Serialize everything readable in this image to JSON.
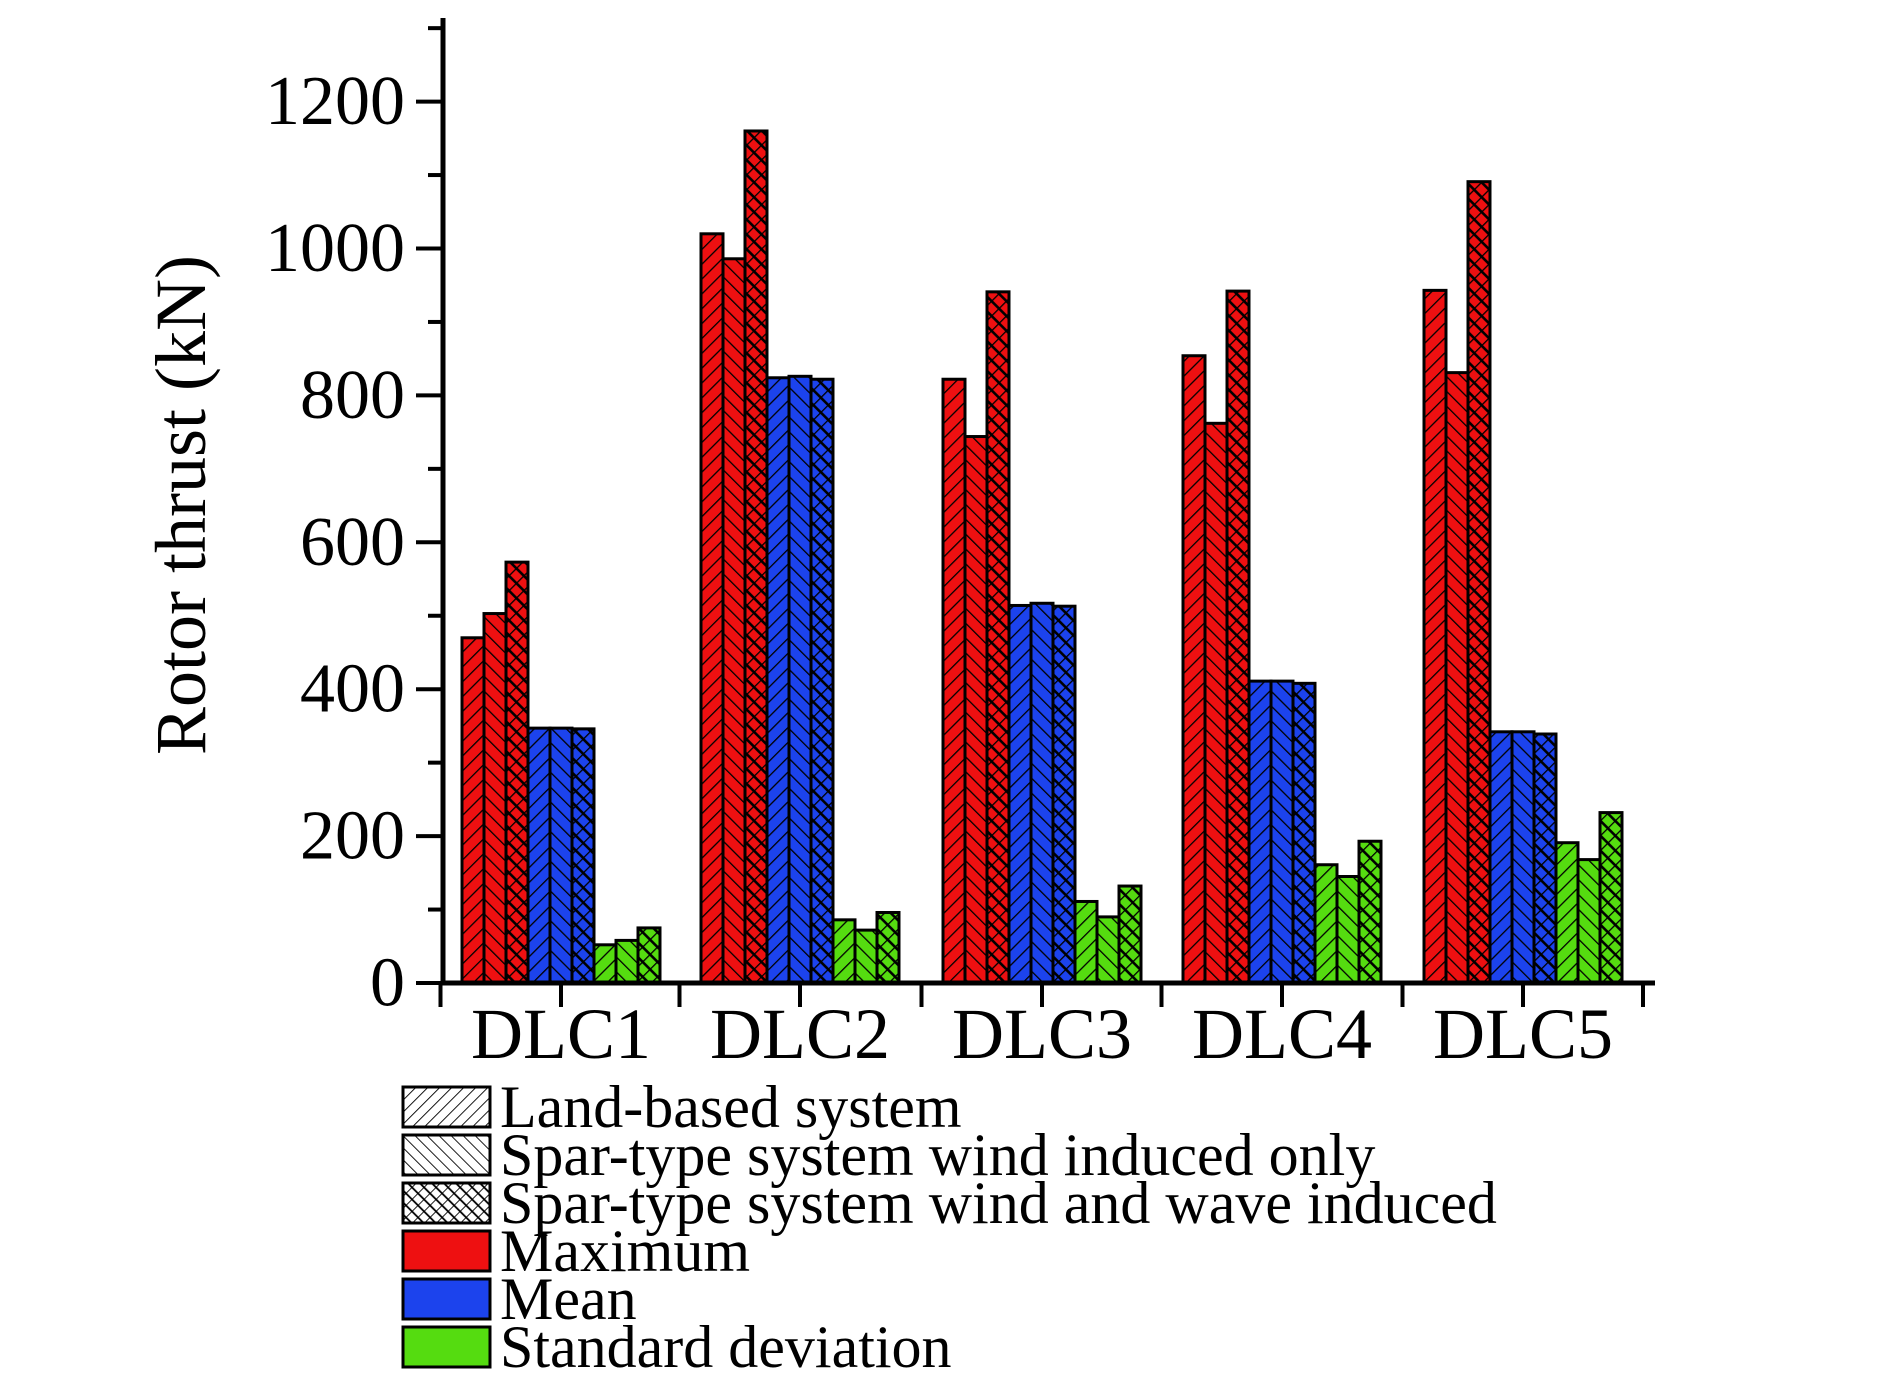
{
  "chart_data": {
    "type": "bar",
    "title": "",
    "ylabel": "Rotor thrust (kN)",
    "xlabel": "",
    "categories": [
      "DLC1",
      "DLC2",
      "DLC3",
      "DLC4",
      "DLC5"
    ],
    "y_axis": {
      "min": 0,
      "max": 1314,
      "major_ticks": [
        0,
        200,
        400,
        600,
        800,
        1000,
        1200
      ],
      "minor_ticks": [
        100,
        300,
        500,
        700,
        900,
        1100,
        1300
      ],
      "tick_labels": [
        "0",
        "200",
        "400",
        "600",
        "800",
        "1000",
        "1200"
      ]
    },
    "grid": "off",
    "legend_position": "bottom-left",
    "hatch_legend": [
      {
        "label": "Land-based system",
        "hatch": "forward-diagonal"
      },
      {
        "label": "Spar-type system wind induced only",
        "hatch": "backward-diagonal"
      },
      {
        "label": "Spar-type system wind and wave induced",
        "hatch": "crosshatch"
      }
    ],
    "color_legend": [
      {
        "label": "Maximum",
        "color": "#ee1011"
      },
      {
        "label": "Mean",
        "color": "#1c43ed"
      },
      {
        "label": "Standard deviation",
        "color": "#55dc10"
      }
    ],
    "series": [
      {
        "stat": "Maximum",
        "color": "#ee1011",
        "variants": [
          {
            "name": "Land-based system",
            "hatch": "forward-diagonal",
            "values": [
              470,
              1020,
              822,
              854,
              943
            ]
          },
          {
            "name": "Spar-type system wind induced only",
            "hatch": "backward-diagonal",
            "values": [
              503,
              986,
              744,
              762,
              831
            ]
          },
          {
            "name": "Spar-type system wind and wave induced",
            "hatch": "crosshatch",
            "values": [
              573,
              1160,
              941,
              942,
              1091
            ]
          }
        ]
      },
      {
        "stat": "Mean",
        "color": "#1c43ed",
        "variants": [
          {
            "name": "Land-based system",
            "hatch": "forward-diagonal",
            "values": [
              347,
              824,
              514,
              411,
              342
            ]
          },
          {
            "name": "Spar-type system wind induced only",
            "hatch": "backward-diagonal",
            "values": [
              347,
              826,
              517,
              411,
              342
            ]
          },
          {
            "name": "Spar-type system wind and wave induced",
            "hatch": "crosshatch",
            "values": [
              346,
              822,
              513,
              408,
              339
            ]
          }
        ]
      },
      {
        "stat": "Standard deviation",
        "color": "#55dc10",
        "variants": [
          {
            "name": "Land-based system",
            "hatch": "forward-diagonal",
            "values": [
              52,
              86,
              111,
              161,
              191
            ]
          },
          {
            "name": "Spar-type system wind induced only",
            "hatch": "backward-diagonal",
            "values": [
              58,
              72,
              90,
              145,
              168
            ]
          },
          {
            "name": "Spar-type system wind and wave induced",
            "hatch": "crosshatch",
            "values": [
              75,
              96,
              132,
              193,
              232
            ]
          }
        ]
      }
    ]
  }
}
